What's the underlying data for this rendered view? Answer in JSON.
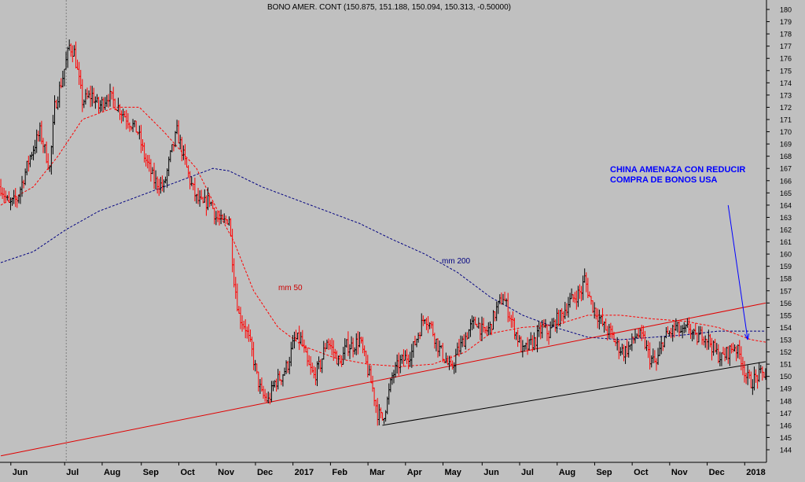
{
  "chart_data": {
    "type": "candlestick",
    "title": "BONO AMER. CONT (150.875, 151.188, 150.094, 150.313, -0.50000)",
    "y_range": [
      143,
      181
    ],
    "y_ticks": [
      144,
      145,
      146,
      147,
      148,
      149,
      150,
      151,
      152,
      153,
      154,
      155,
      156,
      157,
      158,
      159,
      160,
      161,
      162,
      163,
      164,
      165,
      166,
      167,
      168,
      169,
      170,
      171,
      172,
      173,
      174,
      175,
      176,
      177,
      178,
      179,
      180
    ],
    "x_labels": [
      {
        "label": "Jun",
        "bar": 10
      },
      {
        "label": "Jul",
        "bar": 43
      },
      {
        "label": "Aug",
        "bar": 66
      },
      {
        "label": "Sep",
        "bar": 90
      },
      {
        "label": "Oct",
        "bar": 113
      },
      {
        "label": "Nov",
        "bar": 136
      },
      {
        "label": "Dec",
        "bar": 160
      },
      {
        "label": "2017",
        "bar": 183
      },
      {
        "label": "Feb",
        "bar": 206
      },
      {
        "label": "Mar",
        "bar": 229
      },
      {
        "label": "Apr",
        "bar": 252
      },
      {
        "label": "May",
        "bar": 275
      },
      {
        "label": "Jun",
        "bar": 299
      },
      {
        "label": "Jul",
        "bar": 322
      },
      {
        "label": "Aug",
        "bar": 345
      },
      {
        "label": "Sep",
        "bar": 368
      },
      {
        "label": "Oct",
        "bar": 391
      },
      {
        "label": "Nov",
        "bar": 414
      },
      {
        "label": "Dec",
        "bar": 437
      },
      {
        "label": "2018",
        "bar": 460
      }
    ],
    "bars_count": 470,
    "vertical_marker_bar": 43,
    "close_anchors": [
      [
        0,
        165.5
      ],
      [
        5,
        164
      ],
      [
        10,
        164.5
      ],
      [
        18,
        168
      ],
      [
        24,
        170
      ],
      [
        30,
        167
      ],
      [
        33,
        172
      ],
      [
        38,
        174.5
      ],
      [
        42,
        177
      ],
      [
        45,
        176.5
      ],
      [
        50,
        172.5
      ],
      [
        56,
        173
      ],
      [
        60,
        172
      ],
      [
        66,
        173
      ],
      [
        72,
        172
      ],
      [
        78,
        171
      ],
      [
        84,
        170
      ],
      [
        88,
        168
      ],
      [
        94,
        166
      ],
      [
        100,
        165.5
      ],
      [
        104,
        168
      ],
      [
        108,
        170
      ],
      [
        112,
        168
      ],
      [
        116,
        166
      ],
      [
        120,
        164.5
      ],
      [
        124,
        164
      ],
      [
        128,
        164.5
      ],
      [
        132,
        163
      ],
      [
        136,
        162.5
      ],
      [
        140,
        163
      ],
      [
        143,
        158
      ],
      [
        146,
        155
      ],
      [
        150,
        154
      ],
      [
        154,
        152
      ],
      [
        157,
        150
      ],
      [
        160,
        148.5
      ],
      [
        164,
        148
      ],
      [
        168,
        149.5
      ],
      [
        172,
        150
      ],
      [
        176,
        151
      ],
      [
        180,
        153
      ],
      [
        184,
        153
      ],
      [
        188,
        151
      ],
      [
        192,
        150
      ],
      [
        196,
        151
      ],
      [
        200,
        153
      ],
      [
        204,
        152
      ],
      [
        208,
        151
      ],
      [
        212,
        152.5
      ],
      [
        216,
        152.5
      ],
      [
        220,
        153
      ],
      [
        225,
        150.5
      ],
      [
        228,
        149
      ],
      [
        231,
        147
      ],
      [
        234,
        146.5
      ],
      [
        237,
        148
      ],
      [
        240,
        150
      ],
      [
        244,
        151
      ],
      [
        248,
        151.5
      ],
      [
        252,
        152
      ],
      [
        256,
        153.5
      ],
      [
        260,
        155
      ],
      [
        264,
        154
      ],
      [
        268,
        152.5
      ],
      [
        272,
        151.5
      ],
      [
        276,
        150.5
      ],
      [
        280,
        152
      ],
      [
        284,
        153
      ],
      [
        288,
        154
      ],
      [
        292,
        154.5
      ],
      [
        296,
        153.5
      ],
      [
        300,
        154
      ],
      [
        304,
        155.5
      ],
      [
        308,
        156.5
      ],
      [
        312,
        155
      ],
      [
        316,
        153.5
      ],
      [
        320,
        152
      ],
      [
        324,
        152.5
      ],
      [
        328,
        153
      ],
      [
        332,
        154
      ],
      [
        336,
        153.5
      ],
      [
        340,
        154.5
      ],
      [
        344,
        155
      ],
      [
        348,
        156
      ],
      [
        352,
        156.5
      ],
      [
        356,
        157
      ],
      [
        358,
        158
      ],
      [
        362,
        156
      ],
      [
        366,
        155
      ],
      [
        370,
        154
      ],
      [
        374,
        153.5
      ],
      [
        378,
        152.5
      ],
      [
        382,
        152
      ],
      [
        386,
        152.5
      ],
      [
        390,
        153.5
      ],
      [
        394,
        153
      ],
      [
        398,
        151.5
      ],
      [
        402,
        151
      ],
      [
        406,
        153
      ],
      [
        410,
        153.5
      ],
      [
        414,
        154
      ],
      [
        418,
        153.5
      ],
      [
        422,
        154
      ],
      [
        426,
        153
      ],
      [
        430,
        153.5
      ],
      [
        434,
        153
      ],
      [
        438,
        152
      ],
      [
        442,
        151.5
      ],
      [
        446,
        152
      ],
      [
        450,
        152.5
      ],
      [
        454,
        151.5
      ],
      [
        457,
        150
      ],
      [
        460,
        149.5
      ],
      [
        464,
        150
      ],
      [
        469,
        150.3
      ]
    ],
    "ma50_anchors": [
      [
        0,
        164
      ],
      [
        20,
        165.5
      ],
      [
        35,
        168
      ],
      [
        50,
        171
      ],
      [
        70,
        172
      ],
      [
        85,
        172
      ],
      [
        100,
        170
      ],
      [
        120,
        167
      ],
      [
        135,
        163
      ],
      [
        143,
        161
      ],
      [
        155,
        157
      ],
      [
        170,
        154
      ],
      [
        185,
        152.5
      ],
      [
        205,
        151.5
      ],
      [
        225,
        151
      ],
      [
        245,
        150.8
      ],
      [
        265,
        151
      ],
      [
        285,
        152
      ],
      [
        300,
        153.5
      ],
      [
        320,
        154
      ],
      [
        340,
        154.2
      ],
      [
        360,
        155
      ],
      [
        380,
        155
      ],
      [
        400,
        154.7
      ],
      [
        420,
        154.5
      ],
      [
        440,
        154
      ],
      [
        460,
        153
      ],
      [
        469,
        152.8
      ]
    ],
    "ma200_anchors": [
      [
        0,
        159.3
      ],
      [
        20,
        160.2
      ],
      [
        40,
        162
      ],
      [
        60,
        163.5
      ],
      [
        80,
        164.5
      ],
      [
        100,
        165.5
      ],
      [
        120,
        166.5
      ],
      [
        130,
        167
      ],
      [
        140,
        166.8
      ],
      [
        160,
        165.5
      ],
      [
        180,
        164.5
      ],
      [
        200,
        163.5
      ],
      [
        220,
        162.5
      ],
      [
        240,
        161.2
      ],
      [
        260,
        160
      ],
      [
        280,
        158.5
      ],
      [
        300,
        156.5
      ],
      [
        320,
        155
      ],
      [
        340,
        154
      ],
      [
        360,
        153.2
      ],
      [
        380,
        153
      ],
      [
        400,
        153.2
      ],
      [
        420,
        153.4
      ],
      [
        440,
        153.7
      ],
      [
        469,
        153.7
      ]
    ],
    "trendlines": [
      {
        "name": "red-support-line",
        "color": "#e00000",
        "points": [
          [
            0,
            143.5
          ],
          [
            469,
            156
          ]
        ]
      },
      {
        "name": "black-support-line",
        "color": "#000000",
        "points": [
          [
            234,
            146
          ],
          [
            469,
            151.2
          ]
        ]
      }
    ],
    "annotation_arrow": {
      "from": [
        446,
        164
      ],
      "to": [
        458,
        153
      ]
    },
    "colors": {
      "background": "#c0c0c0",
      "up_bar": "#000000",
      "down_bar": "#ff0000",
      "ma50": "#ff0000",
      "ma200": "#000080",
      "annotation": "#0000ff",
      "grid": "#808080"
    },
    "labels": {
      "ma50": "mm 50",
      "ma200": "mm 200",
      "annotation_line1": "CHINA AMENAZA CON REDUCIR",
      "annotation_line2": "COMPRA DE BONOS USA"
    }
  }
}
